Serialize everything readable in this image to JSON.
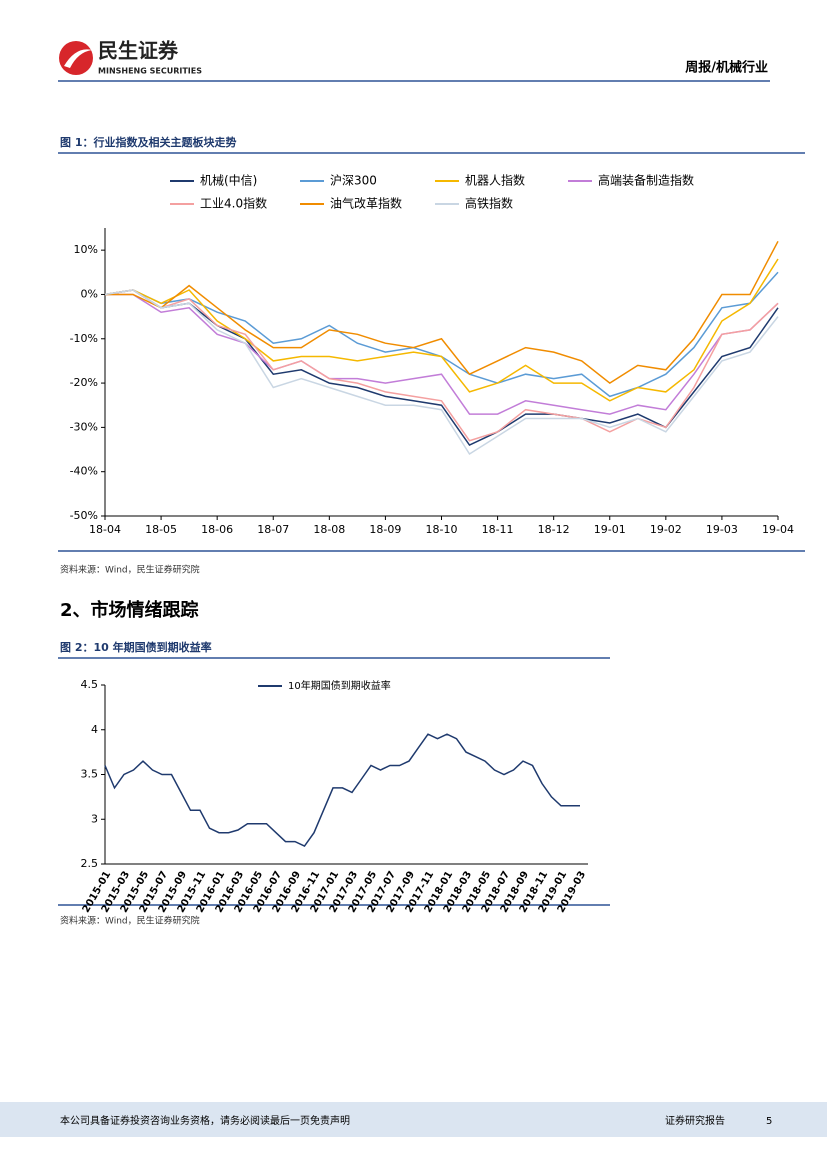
{
  "header": {
    "logo_cn": "民生证券",
    "logo_en": "MINSHENG SECURITIES",
    "report_type": "周报/机械行业"
  },
  "figures": [
    {
      "title": "图 1：行业指数及相关主题板块走势",
      "source": "资料来源：Wind，民生证券研究院"
    },
    {
      "title": "图 2：10 年期国债到期收益率",
      "source": "资料来源：Wind，民生证券研究院"
    }
  ],
  "section_title": "2、市场情绪跟踪",
  "footer": {
    "disclaimer": "本公司具备证券投资咨询业务资格，请务必阅读最后一页免责声明",
    "label": "证券研究报告",
    "page": 5
  },
  "chart_data": [
    {
      "type": "line",
      "legend": "top",
      "x": [
        0,
        0.5,
        1,
        1.5,
        2,
        2.5,
        3,
        3.5,
        4,
        4.5,
        5,
        5.5,
        6,
        6.5,
        7,
        7.5,
        8,
        8.5,
        9,
        9.5,
        10,
        10.5,
        11,
        11.5,
        12
      ],
      "xlim": [
        0,
        12
      ],
      "xticks": [
        {
          "value": 0,
          "label": "18-04"
        },
        {
          "value": 1,
          "label": "18-05"
        },
        {
          "value": 2,
          "label": "18-06"
        },
        {
          "value": 3,
          "label": "18-07"
        },
        {
          "value": 4,
          "label": "18-08"
        },
        {
          "value": 5,
          "label": "18-09"
        },
        {
          "value": 6,
          "label": "18-10"
        },
        {
          "value": 7,
          "label": "18-11"
        },
        {
          "value": 8,
          "label": "18-12"
        },
        {
          "value": 9,
          "label": "19-01"
        },
        {
          "value": 10,
          "label": "19-02"
        },
        {
          "value": 11,
          "label": "19-03"
        },
        {
          "value": 12,
          "label": "19-04"
        }
      ],
      "ylim": [
        -50,
        15
      ],
      "yticks": [
        {
          "value": -50,
          "label": "-50%"
        },
        {
          "value": -40,
          "label": "-40%"
        },
        {
          "value": -30,
          "label": "-30%"
        },
        {
          "value": -20,
          "label": "-20%"
        },
        {
          "value": -10,
          "label": "-10%"
        },
        {
          "value": 0,
          "label": "0%"
        },
        {
          "value": 10,
          "label": "10%"
        }
      ],
      "series": [
        {
          "name": "机械(中信)",
          "color": "#1f3a6e",
          "values": [
            0,
            1,
            -3,
            -2,
            -7,
            -10,
            -18,
            -17,
            -20,
            -21,
            -23,
            -24,
            -25,
            -34,
            -31,
            -27,
            -27,
            -28,
            -29,
            -27,
            -30,
            -22,
            -14,
            -12,
            -3
          ]
        },
        {
          "name": "沪深300",
          "color": "#5b9bd5",
          "values": [
            0,
            1,
            -2,
            -1,
            -4,
            -6,
            -11,
            -10,
            -7,
            -11,
            -13,
            -12,
            -14,
            -18,
            -20,
            -18,
            -19,
            -18,
            -23,
            -21,
            -18,
            -12,
            -3,
            -2,
            5
          ]
        },
        {
          "name": "机器人指数",
          "color": "#f5b800",
          "values": [
            0,
            1,
            -2,
            1,
            -6,
            -10,
            -15,
            -14,
            -14,
            -15,
            -14,
            -13,
            -14,
            -22,
            -20,
            -16,
            -20,
            -20,
            -24,
            -21,
            -22,
            -17,
            -6,
            -2,
            8
          ]
        },
        {
          "name": "高端装备制造指数",
          "color": "#c27dd8",
          "values": [
            0,
            0,
            -4,
            -3,
            -9,
            -11,
            -17,
            -15,
            -19,
            -19,
            -20,
            -19,
            -18,
            -27,
            -27,
            -24,
            -25,
            -26,
            -27,
            -25,
            -26,
            -18,
            -9,
            -8,
            -2
          ]
        },
        {
          "name": "工业4.0指数",
          "color": "#f4a0a0",
          "values": [
            0,
            1,
            -3,
            -1,
            -7,
            -9,
            -17,
            -15,
            -19,
            -20,
            -22,
            -23,
            -24,
            -33,
            -31,
            -26,
            -27,
            -28,
            -31,
            -28,
            -30,
            -21,
            -9,
            -8,
            -2
          ]
        },
        {
          "name": "油气改革指数",
          "color": "#f08c00",
          "values": [
            0,
            0,
            -3,
            2,
            -3,
            -8,
            -12,
            -12,
            -8,
            -9,
            -11,
            -12,
            -10,
            -18,
            -15,
            -12,
            -13,
            -15,
            -20,
            -16,
            -17,
            -10,
            0,
            0,
            12
          ]
        },
        {
          "name": "高铁指数",
          "color": "#c9d6e3",
          "values": [
            0,
            1,
            -3,
            -2,
            -8,
            -11,
            -21,
            -19,
            -21,
            -23,
            -25,
            -25,
            -26,
            -36,
            -32,
            -28,
            -28,
            -28,
            -30,
            -28,
            -31,
            -23,
            -15,
            -13,
            -5
          ]
        }
      ]
    },
    {
      "type": "line",
      "legend": "top",
      "categories": [
        "2015-01",
        null,
        "2015-03",
        null,
        "2015-05",
        null,
        "2015-07",
        null,
        "2015-09",
        null,
        "2015-11",
        null,
        "2016-01",
        null,
        "2016-03",
        null,
        "2016-05",
        null,
        "2016-07",
        null,
        "2016-09",
        null,
        "2016-11",
        null,
        "2017-01",
        null,
        "2017-03",
        null,
        "2017-05",
        null,
        "2017-07",
        null,
        "2017-09",
        null,
        "2017-11",
        null,
        "2018-01",
        null,
        "2018-03",
        null,
        "2018-05",
        null,
        "2018-07",
        null,
        "2018-09",
        null,
        "2018-11",
        null,
        "2019-01",
        null,
        "2019-03"
      ],
      "ylim": [
        2.5,
        4.5
      ],
      "yticks": [
        2.5,
        3,
        3.5,
        4,
        4.5
      ],
      "series": [
        {
          "name": "10年期国债到期收益率",
          "color": "#1f3a6e",
          "values": [
            3.6,
            3.35,
            3.5,
            3.55,
            3.65,
            3.55,
            3.5,
            3.5,
            3.3,
            3.1,
            3.1,
            2.9,
            2.85,
            2.85,
            2.88,
            2.95,
            2.95,
            2.95,
            2.85,
            2.75,
            2.75,
            2.7,
            2.85,
            3.1,
            3.35,
            3.35,
            3.3,
            3.45,
            3.6,
            3.55,
            3.6,
            3.6,
            3.65,
            3.8,
            3.95,
            3.9,
            3.95,
            3.9,
            3.75,
            3.7,
            3.65,
            3.55,
            3.5,
            3.55,
            3.65,
            3.6,
            3.4,
            3.25,
            3.15,
            3.15,
            3.15
          ]
        }
      ]
    }
  ]
}
